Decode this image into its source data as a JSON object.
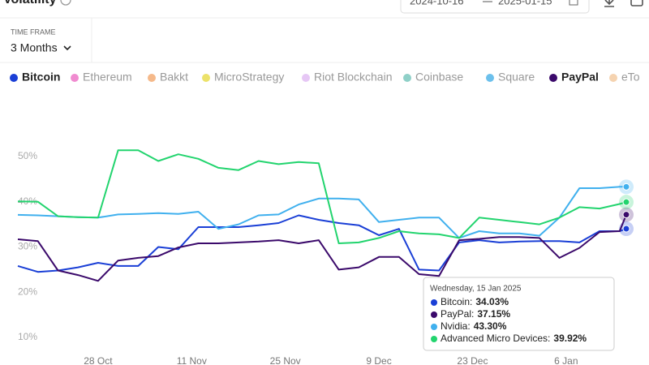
{
  "header": {
    "title": "Volatility",
    "date_from": "2024-10-16",
    "date_to": "2025-01-15"
  },
  "time_frame": {
    "label": "TIME FRAME",
    "value": "3 Months"
  },
  "legend": [
    {
      "name": "Bitcoin",
      "color": "#1a3fd6",
      "active": true
    },
    {
      "name": "Ethereum",
      "color": "#f08bd0",
      "active": false
    },
    {
      "name": "Bakkt",
      "color": "#f5b98a",
      "active": false
    },
    {
      "name": "MicroStrategy",
      "color": "#ece26a",
      "active": false
    },
    {
      "name": "Riot Blockchain",
      "color": "#e6c7f5",
      "active": false
    },
    {
      "name": "Coinbase",
      "color": "#8fd0c8",
      "active": false
    },
    {
      "name": "Square",
      "color": "#6cc0ec",
      "active": false
    },
    {
      "name": "PayPal",
      "color": "#3b0a6b",
      "active": true
    },
    {
      "name": "eTo",
      "color": "#f5d3b0",
      "active": false
    }
  ],
  "chart_data": {
    "type": "line",
    "x": [
      "2024-10-16",
      "2024-10-19",
      "2024-10-22",
      "2024-10-25",
      "2024-10-28",
      "2024-10-31",
      "2024-11-03",
      "2024-11-06",
      "2024-11-09",
      "2024-11-12",
      "2024-11-15",
      "2024-11-18",
      "2024-11-21",
      "2024-11-24",
      "2024-11-27",
      "2024-11-30",
      "2024-12-03",
      "2024-12-06",
      "2024-12-09",
      "2024-12-12",
      "2024-12-15",
      "2024-12-18",
      "2024-12-21",
      "2024-12-24",
      "2024-12-27",
      "2024-12-30",
      "2025-01-02",
      "2025-01-05",
      "2025-01-08",
      "2025-01-11",
      "2025-01-14",
      "2025-01-15"
    ],
    "xlim": [
      "2024-10-16",
      "2025-01-15"
    ],
    "xticks": [
      {
        "value": "2024-10-28",
        "label": "28 Oct"
      },
      {
        "value": "2024-11-11",
        "label": "11 Nov"
      },
      {
        "value": "2024-11-25",
        "label": "25 Nov"
      },
      {
        "value": "2024-12-09",
        "label": "9 Dec"
      },
      {
        "value": "2024-12-23",
        "label": "23 Dec"
      },
      {
        "value": "2025-01-06",
        "label": "6 Jan"
      }
    ],
    "ylim": [
      7.5,
      58.6
    ],
    "yticks": [
      {
        "value": 10,
        "label": "10%"
      },
      {
        "value": 20,
        "label": "20%"
      },
      {
        "value": 30,
        "label": "30%"
      },
      {
        "value": 40,
        "label": "40%"
      },
      {
        "value": 50,
        "label": "50%"
      }
    ],
    "grid": false,
    "series": [
      {
        "name": "Bitcoin",
        "color": "#1a3fd6",
        "values": [
          25.8,
          24.5,
          24.8,
          25.5,
          26.5,
          25.8,
          25.8,
          30.0,
          29.5,
          34.4,
          34.4,
          34.4,
          34.8,
          35.3,
          37.0,
          36.0,
          35.3,
          34.8,
          32.6,
          34.0,
          25.0,
          24.8,
          31.0,
          31.5,
          31.0,
          31.2,
          31.3,
          31.3,
          31.0,
          33.5,
          33.5,
          34.03
        ]
      },
      {
        "name": "PayPal",
        "color": "#3b0a6b",
        "values": [
          31.7,
          31.3,
          24.8,
          23.8,
          22.5,
          27.0,
          27.6,
          28.0,
          29.9,
          30.8,
          30.8,
          31.0,
          31.2,
          31.5,
          30.8,
          31.5,
          25.0,
          25.5,
          27.8,
          27.8,
          24.0,
          23.6,
          31.5,
          31.8,
          32.2,
          32.2,
          32.0,
          27.6,
          29.8,
          33.3,
          33.5,
          37.15
        ]
      },
      {
        "name": "Nvidia",
        "color": "#40b0ee",
        "values": [
          37.1,
          37.0,
          36.8,
          36.6,
          36.5,
          37.2,
          37.3,
          37.5,
          37.3,
          37.8,
          34.0,
          35.0,
          37.0,
          37.2,
          39.4,
          40.7,
          40.7,
          40.5,
          35.5,
          36.0,
          36.5,
          36.5,
          32.0,
          33.5,
          33.0,
          33.0,
          32.5,
          36.5,
          43.0,
          43.0,
          43.3,
          43.3
        ]
      },
      {
        "name": "Advanced Micro Devices",
        "color": "#22d46e",
        "values": [
          40.1,
          40.0,
          36.8,
          36.6,
          36.5,
          51.4,
          51.4,
          49.0,
          50.5,
          49.5,
          47.5,
          47.0,
          49.0,
          48.3,
          48.8,
          48.5,
          30.8,
          31.0,
          32.0,
          33.5,
          33.0,
          32.8,
          32.0,
          36.5,
          36.0,
          35.5,
          35.0,
          36.5,
          38.8,
          38.5,
          39.5,
          39.92
        ]
      }
    ],
    "tooltip": {
      "title": "Wednesday, 15 Jan 2025",
      "rows": [
        {
          "name": "Bitcoin:",
          "label": "34.03%"
        },
        {
          "name": "PayPal:",
          "label": "37.15%"
        },
        {
          "name": "Nvidia:",
          "label": "43.30%"
        },
        {
          "name": "Advanced Micro Devices:",
          "label": "39.92%"
        }
      ]
    }
  }
}
